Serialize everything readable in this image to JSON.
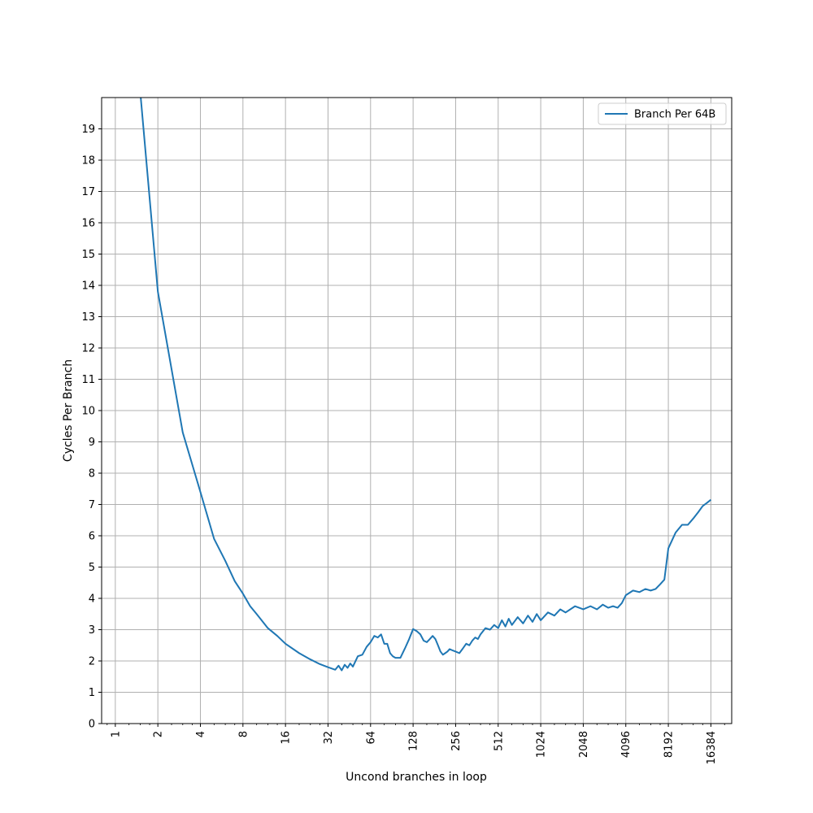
{
  "chart_data": {
    "type": "line",
    "title": "",
    "xlabel": "Uncond branches in loop",
    "ylabel": "Cycles Per Branch",
    "xscale": "log2",
    "xlim": [
      0.8,
      23000
    ],
    "ylim": [
      0,
      20
    ],
    "x_ticks": [
      1,
      2,
      4,
      8,
      16,
      32,
      64,
      128,
      256,
      512,
      1024,
      2048,
      4096,
      8192,
      16384
    ],
    "y_ticks": [
      0,
      1,
      2,
      3,
      4,
      5,
      6,
      7,
      8,
      9,
      10,
      11,
      12,
      13,
      14,
      15,
      16,
      17,
      18,
      19
    ],
    "grid": true,
    "legend_position": "top-right",
    "series": [
      {
        "name": "Branch Per 64B",
        "color": "#1f77b4",
        "x": [
          1.5,
          2,
          3,
          4,
          5,
          6,
          7,
          8,
          9,
          10,
          12,
          14,
          16,
          20,
          24,
          28,
          32,
          36,
          38,
          40,
          42,
          44,
          46,
          48,
          52,
          56,
          60,
          64,
          68,
          72,
          76,
          80,
          84,
          88,
          92,
          96,
          104,
          112,
          120,
          128,
          136,
          144,
          152,
          160,
          168,
          176,
          184,
          192,
          200,
          208,
          216,
          224,
          232,
          240,
          256,
          272,
          288,
          304,
          320,
          336,
          352,
          368,
          384,
          416,
          448,
          480,
          512,
          544,
          576,
          608,
          640,
          704,
          768,
          832,
          896,
          960,
          1024,
          1152,
          1280,
          1408,
          1536,
          1792,
          2048,
          2304,
          2560,
          2816,
          3072,
          3328,
          3584,
          3840,
          4096,
          4608,
          5120,
          5632,
          6144,
          6656,
          7168,
          7680,
          8192,
          9216,
          10240,
          11264,
          12288,
          13312,
          14336,
          15360,
          16384
        ],
        "y": [
          20.2,
          13.8,
          9.3,
          7.4,
          5.9,
          5.2,
          4.55,
          4.15,
          3.75,
          3.5,
          3.05,
          2.8,
          2.55,
          2.25,
          2.05,
          1.9,
          1.8,
          1.72,
          1.85,
          1.7,
          1.88,
          1.78,
          1.92,
          1.82,
          2.15,
          2.2,
          2.45,
          2.6,
          2.8,
          2.75,
          2.85,
          2.55,
          2.55,
          2.25,
          2.15,
          2.1,
          2.1,
          2.4,
          2.7,
          3.02,
          2.95,
          2.85,
          2.65,
          2.6,
          2.7,
          2.8,
          2.7,
          2.5,
          2.3,
          2.2,
          2.25,
          2.3,
          2.38,
          2.35,
          2.3,
          2.25,
          2.4,
          2.55,
          2.5,
          2.65,
          2.75,
          2.7,
          2.85,
          3.05,
          3.0,
          3.15,
          3.05,
          3.3,
          3.1,
          3.35,
          3.15,
          3.4,
          3.2,
          3.45,
          3.25,
          3.5,
          3.3,
          3.55,
          3.45,
          3.65,
          3.55,
          3.75,
          3.65,
          3.75,
          3.65,
          3.8,
          3.7,
          3.75,
          3.7,
          3.85,
          4.1,
          4.25,
          4.2,
          4.3,
          4.25,
          4.3,
          4.45,
          4.6,
          5.6,
          6.1,
          6.35,
          6.35,
          6.55,
          6.75,
          6.95,
          7.05,
          7.15
        ]
      }
    ]
  }
}
